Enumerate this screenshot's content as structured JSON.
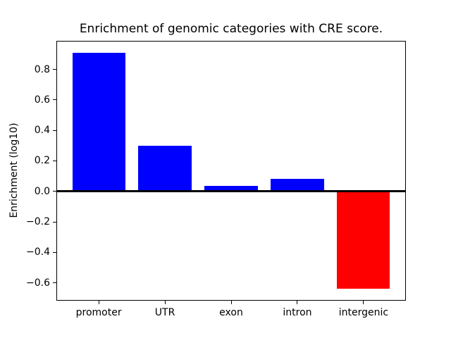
{
  "figure": {
    "background": "#ffffff"
  },
  "chart_data": {
    "type": "bar",
    "title": "Enrichment of genomic categories with CRE score.",
    "xlabel": "",
    "ylabel": "Enrichment (log10)",
    "categories": [
      "promoter",
      "UTR",
      "exon",
      "intron",
      "intergenic"
    ],
    "values": [
      0.91,
      0.3,
      0.035,
      0.08,
      -0.64
    ],
    "bar_colors": [
      "#0000ff",
      "#0000ff",
      "#0000ff",
      "#0000ff",
      "#ff0000"
    ],
    "positive_color": "#0000ff",
    "negative_color": "#ff0000",
    "baseline_value": 0,
    "baseline_color": "#000000",
    "bar_width": 0.8,
    "xlim": [
      -0.64,
      4.64
    ],
    "ylim": [
      -0.7175,
      0.9875
    ],
    "yticks": [
      {
        "value": 0.8,
        "label": "0.8"
      },
      {
        "value": 0.6,
        "label": "0.6"
      },
      {
        "value": 0.4,
        "label": "0.4"
      },
      {
        "value": 0.2,
        "label": "0.2"
      },
      {
        "value": 0.0,
        "label": "0.0"
      },
      {
        "value": -0.2,
        "label": "−0.2"
      },
      {
        "value": -0.4,
        "label": "−0.4"
      },
      {
        "value": -0.6,
        "label": "−0.6"
      }
    ],
    "grid": false,
    "legend_position": "none"
  }
}
